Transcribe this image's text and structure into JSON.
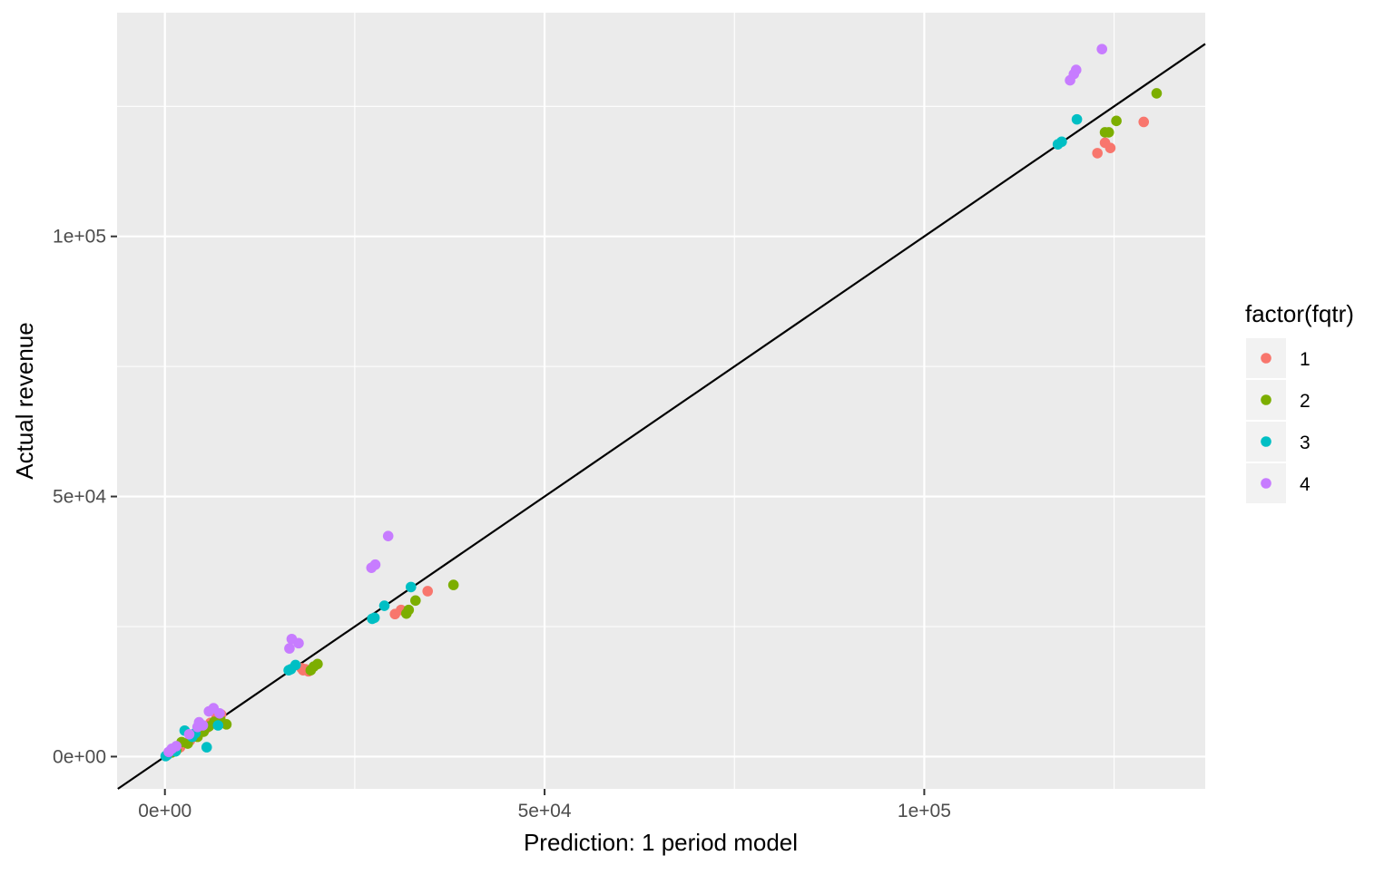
{
  "chart_data": {
    "type": "scatter",
    "title": "",
    "xlabel": "Prediction: 1 period model",
    "ylabel": "Actual revenue",
    "xlim": [
      -6300,
      137000
    ],
    "ylim": [
      -6200,
      143000
    ],
    "x_ticks": [
      0,
      50000,
      100000
    ],
    "x_tick_labels": [
      "0e+00",
      "5e+04",
      "1e+05"
    ],
    "y_ticks": [
      0,
      50000,
      100000
    ],
    "y_tick_labels": [
      "0e+00",
      "5e+04",
      "1e+05"
    ],
    "grid": true,
    "reference_line": {
      "slope": 1,
      "intercept": 0,
      "color": "#000000"
    },
    "legend": {
      "title": "factor(fqtr)",
      "position": "right",
      "entries": [
        {
          "label": "1",
          "color": "#F8766D"
        },
        {
          "label": "2",
          "color": "#7CAE00"
        },
        {
          "label": "3",
          "color": "#00BFC4"
        },
        {
          "label": "4",
          "color": "#C77CFF"
        }
      ]
    },
    "series": [
      {
        "name": "1",
        "color": "#F8766D",
        "points": [
          [
            128900,
            122000
          ],
          [
            124500,
            117000
          ],
          [
            123800,
            118000
          ],
          [
            122800,
            116000
          ],
          [
            34600,
            31800
          ],
          [
            31100,
            28200
          ],
          [
            30300,
            27400
          ],
          [
            18500,
            16800
          ],
          [
            18000,
            17000
          ],
          [
            18900,
            16400
          ],
          [
            18200,
            16600
          ],
          [
            6000,
            6500
          ],
          [
            5500,
            5500
          ],
          [
            6800,
            7500
          ],
          [
            7400,
            8100
          ],
          [
            4000,
            4000
          ],
          [
            3300,
            3100
          ],
          [
            2000,
            1800
          ]
        ]
      },
      {
        "name": "2",
        "color": "#7CAE00",
        "points": [
          [
            130600,
            127500
          ],
          [
            125300,
            122200
          ],
          [
            124300,
            120000
          ],
          [
            123800,
            120000
          ],
          [
            38000,
            33000
          ],
          [
            33000,
            30000
          ],
          [
            32100,
            28200
          ],
          [
            31800,
            27500
          ],
          [
            20100,
            17800
          ],
          [
            19600,
            17300
          ],
          [
            19200,
            16600
          ],
          [
            8100,
            6200
          ],
          [
            7300,
            7100
          ],
          [
            6500,
            6700
          ],
          [
            5800,
            5800
          ],
          [
            5100,
            4800
          ],
          [
            4300,
            3800
          ],
          [
            3000,
            2500
          ],
          [
            2200,
            2800
          ],
          [
            1500,
            1200
          ],
          [
            900,
            800
          ]
        ]
      },
      {
        "name": "3",
        "color": "#00BFC4",
        "points": [
          [
            120100,
            122500
          ],
          [
            118100,
            118200
          ],
          [
            117600,
            117700
          ],
          [
            32400,
            32600
          ],
          [
            28900,
            29000
          ],
          [
            27600,
            26700
          ],
          [
            27300,
            26500
          ],
          [
            17200,
            17600
          ],
          [
            16600,
            16800
          ],
          [
            16300,
            16600
          ],
          [
            7000,
            6000
          ],
          [
            5500,
            1800
          ],
          [
            4000,
            4500
          ],
          [
            3600,
            3800
          ],
          [
            2600,
            5000
          ],
          [
            1400,
            1000
          ],
          [
            300,
            300
          ],
          [
            100,
            100
          ]
        ]
      },
      {
        "name": "4",
        "color": "#C77CFF",
        "points": [
          [
            123400,
            136000
          ],
          [
            120000,
            132000
          ],
          [
            119700,
            131200
          ],
          [
            119200,
            130000
          ],
          [
            29400,
            42400
          ],
          [
            27700,
            36900
          ],
          [
            27200,
            36300
          ],
          [
            17600,
            21800
          ],
          [
            16700,
            22600
          ],
          [
            16400,
            20800
          ],
          [
            6400,
            9300
          ],
          [
            5800,
            8700
          ],
          [
            7200,
            8300
          ],
          [
            4500,
            6600
          ],
          [
            5000,
            6000
          ],
          [
            4300,
            5700
          ],
          [
            3200,
            4300
          ],
          [
            1500,
            2000
          ],
          [
            900,
            1500
          ],
          [
            500,
            900
          ]
        ]
      }
    ]
  }
}
